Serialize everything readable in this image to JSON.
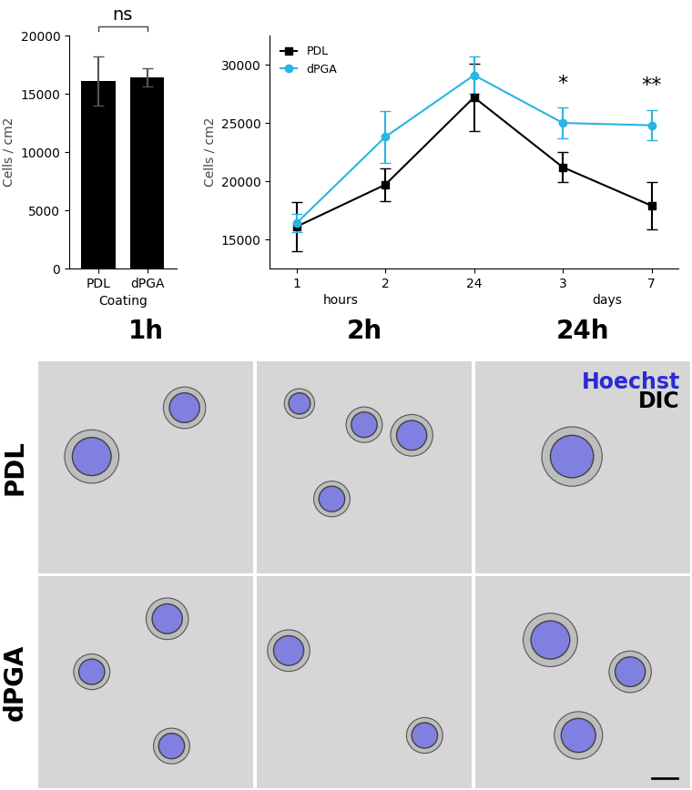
{
  "chart_data": [
    {
      "type": "bar",
      "categories": [
        "PDL",
        "dPGA"
      ],
      "values": [
        16100,
        16400
      ],
      "errors": [
        2100,
        800
      ],
      "color": "#000000",
      "x_label": "Coating",
      "y_label": "Cells / cm2",
      "ylim": [
        0,
        20000
      ],
      "yticks": [
        0,
        5000,
        10000,
        15000,
        20000
      ],
      "annotations": [
        {
          "text": "ns",
          "between": [
            "PDL",
            "dPGA"
          ]
        }
      ]
    },
    {
      "type": "line",
      "categories": [
        "1",
        "2",
        "24",
        "3",
        "7"
      ],
      "x_group_labels": [
        {
          "text": "hours",
          "between": [
            "1",
            "2"
          ]
        },
        {
          "text": "days",
          "between": [
            "3",
            "7"
          ]
        }
      ],
      "y_label": "Cells / cm2",
      "ylim": [
        12500,
        32500
      ],
      "yticks": [
        15000,
        20000,
        25000,
        30000
      ],
      "legend": "upper left",
      "series": [
        {
          "name": "PDL",
          "color": "#000000",
          "marker": "square",
          "values": [
            16100,
            19700,
            27200,
            21200,
            17900
          ],
          "errors": [
            2100,
            1400,
            2900,
            1300,
            2000
          ]
        },
        {
          "name": "dPGA",
          "color": "#2ab4e3",
          "marker": "circle",
          "values": [
            16400,
            23800,
            29100,
            25000,
            24800
          ],
          "errors": [
            800,
            2200,
            1600,
            1300,
            1300
          ]
        }
      ],
      "annotations": [
        {
          "text": "*",
          "category": "3"
        },
        {
          "text": "**",
          "category": "7"
        }
      ]
    }
  ],
  "image_panel": {
    "columns": [
      "1h",
      "2h",
      "24h"
    ],
    "rows": [
      "PDL",
      "dPGA"
    ],
    "channels": [
      {
        "name": "Hoechst",
        "color": "#2b2bd6"
      },
      {
        "name": "DIC",
        "color": "#000000"
      }
    ]
  }
}
